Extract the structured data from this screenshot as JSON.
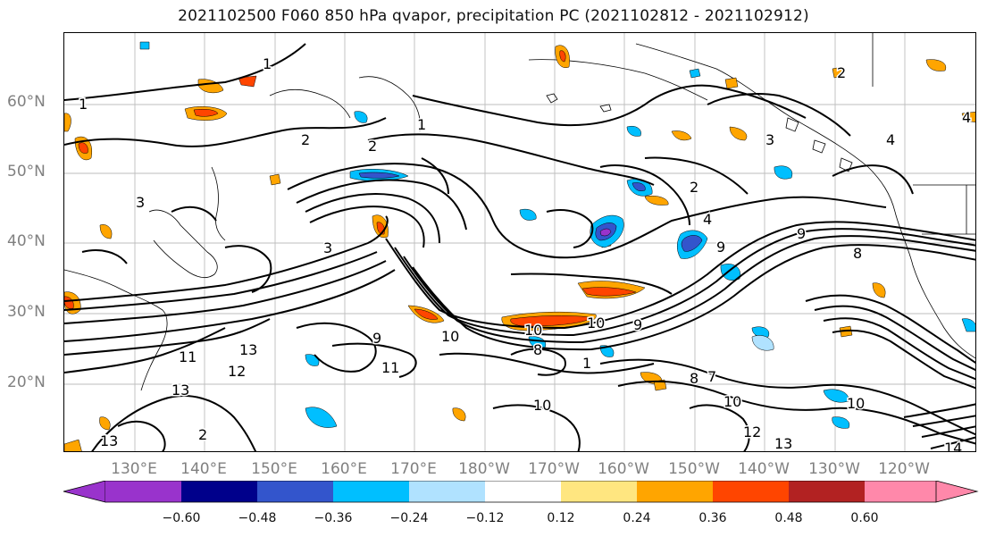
{
  "title": "2021102500 F060 850 hPa qvapor, precipitation PC (2021102812 - 2021102912)",
  "lat_labels": [
    "60°N",
    "50°N",
    "40°N",
    "30°N",
    "20°N"
  ],
  "lon_labels": [
    "130°E",
    "140°E",
    "150°E",
    "160°E",
    "170°E",
    "180°W",
    "170°W",
    "160°W",
    "150°W",
    "140°W",
    "130°W",
    "120°W"
  ],
  "colorbar": {
    "colors": [
      "#9933cc",
      "#00008b",
      "#3355cc",
      "#00bfff",
      "#b0e2ff",
      "#ffffff",
      "#ffe680",
      "#ffa500",
      "#ff4500",
      "#b22222",
      "#ff88aa"
    ],
    "ticks": [
      "−0.60",
      "−0.48",
      "−0.36",
      "−0.24",
      "−0.12",
      "0.12",
      "0.24",
      "0.36",
      "0.48",
      "0.60"
    ]
  },
  "contour_labels": [
    "1",
    "1",
    "1",
    "2",
    "2",
    "2",
    "2",
    "3",
    "3",
    "4",
    "4",
    "4",
    "3",
    "9",
    "9",
    "10",
    "10",
    "10",
    "10",
    "9",
    "9",
    "11",
    "11",
    "12",
    "13",
    "13",
    "13",
    "10",
    "10",
    "13",
    "12",
    "14",
    "8",
    "8",
    "8",
    "7",
    "1",
    "2"
  ]
}
